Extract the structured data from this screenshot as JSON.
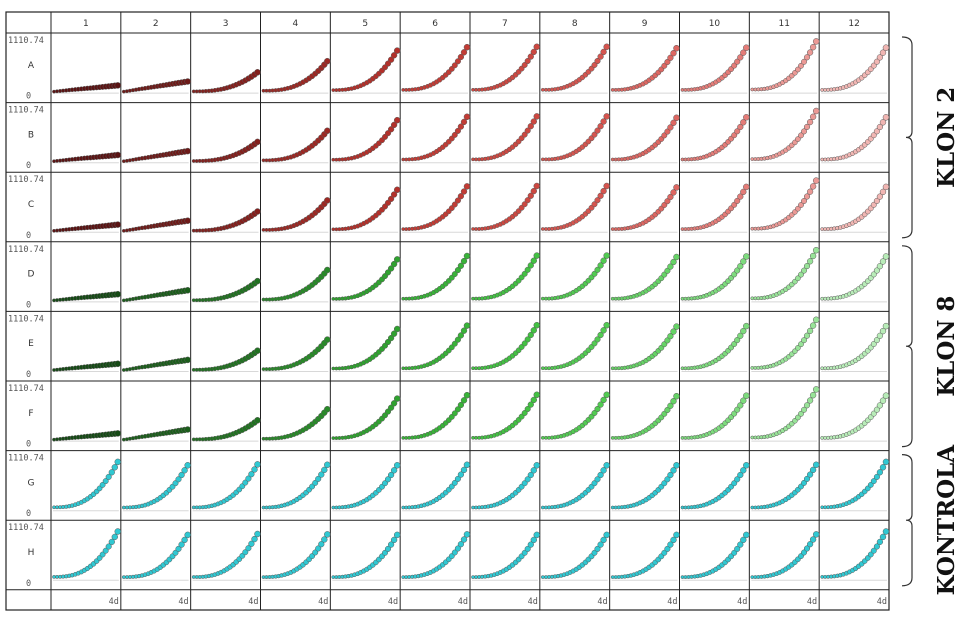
{
  "chart_data": {
    "type": "scatter",
    "title": "",
    "columns": [
      "1",
      "2",
      "3",
      "4",
      "5",
      "6",
      "7",
      "8",
      "9",
      "10",
      "11",
      "12"
    ],
    "rows": [
      "A",
      "B",
      "C",
      "D",
      "E",
      "F",
      "G",
      "H"
    ],
    "y_max_label": "1110.74",
    "y_min_label": "0",
    "ylim": [
      0,
      1110.74
    ],
    "x_end_label": "4d",
    "groups": [
      {
        "name": "KLON 2",
        "rows": [
          "A",
          "B",
          "C"
        ]
      },
      {
        "name": "KLON 8",
        "rows": [
          "D",
          "E",
          "F"
        ]
      },
      {
        "name": "KONTROLA",
        "rows": [
          "G",
          "H"
        ]
      }
    ],
    "row_series": {
      "A": {
        "row_growth": 1.0,
        "series": [
          {
            "name": "1",
            "end": 150
          },
          {
            "name": "2",
            "end": 230
          },
          {
            "name": "3",
            "end": 420
          },
          {
            "name": "4",
            "end": 650
          },
          {
            "name": "5",
            "end": 870
          },
          {
            "name": "6",
            "end": 940
          },
          {
            "name": "7",
            "end": 950
          },
          {
            "name": "8",
            "end": 950
          },
          {
            "name": "9",
            "end": 920
          },
          {
            "name": "10",
            "end": 930
          },
          {
            "name": "11",
            "end": 1060
          },
          {
            "name": "12",
            "end": 930
          }
        ]
      },
      "B": {
        "row_growth": 1.0,
        "series": [
          {
            "name": "1",
            "end": 150
          },
          {
            "name": "2",
            "end": 230
          },
          {
            "name": "3",
            "end": 420
          },
          {
            "name": "4",
            "end": 650
          },
          {
            "name": "5",
            "end": 870
          },
          {
            "name": "6",
            "end": 940
          },
          {
            "name": "7",
            "end": 950
          },
          {
            "name": "8",
            "end": 950
          },
          {
            "name": "9",
            "end": 920
          },
          {
            "name": "10",
            "end": 930
          },
          {
            "name": "11",
            "end": 1060
          },
          {
            "name": "12",
            "end": 930
          }
        ]
      },
      "C": {
        "row_growth": 1.0,
        "series": [
          {
            "name": "1",
            "end": 150
          },
          {
            "name": "2",
            "end": 230
          },
          {
            "name": "3",
            "end": 420
          },
          {
            "name": "4",
            "end": 650
          },
          {
            "name": "5",
            "end": 870
          },
          {
            "name": "6",
            "end": 940
          },
          {
            "name": "7",
            "end": 950
          },
          {
            "name": "8",
            "end": 950
          },
          {
            "name": "9",
            "end": 920
          },
          {
            "name": "10",
            "end": 930
          },
          {
            "name": "11",
            "end": 1060
          },
          {
            "name": "12",
            "end": 930
          }
        ]
      },
      "D": {
        "row_growth": 1.0,
        "series": [
          {
            "name": "1",
            "end": 150
          },
          {
            "name": "2",
            "end": 230
          },
          {
            "name": "3",
            "end": 420
          },
          {
            "name": "4",
            "end": 650
          },
          {
            "name": "5",
            "end": 870
          },
          {
            "name": "6",
            "end": 940
          },
          {
            "name": "7",
            "end": 950
          },
          {
            "name": "8",
            "end": 950
          },
          {
            "name": "9",
            "end": 920
          },
          {
            "name": "10",
            "end": 930
          },
          {
            "name": "11",
            "end": 1060
          },
          {
            "name": "12",
            "end": 930
          }
        ]
      },
      "E": {
        "row_growth": 1.0,
        "series": [
          {
            "name": "1",
            "end": 150
          },
          {
            "name": "2",
            "end": 230
          },
          {
            "name": "3",
            "end": 420
          },
          {
            "name": "4",
            "end": 650
          },
          {
            "name": "5",
            "end": 870
          },
          {
            "name": "6",
            "end": 940
          },
          {
            "name": "7",
            "end": 950
          },
          {
            "name": "8",
            "end": 950
          },
          {
            "name": "9",
            "end": 920
          },
          {
            "name": "10",
            "end": 930
          },
          {
            "name": "11",
            "end": 1060
          },
          {
            "name": "12",
            "end": 930
          }
        ]
      },
      "F": {
        "row_growth": 1.0,
        "series": [
          {
            "name": "1",
            "end": 150
          },
          {
            "name": "2",
            "end": 230
          },
          {
            "name": "3",
            "end": 420
          },
          {
            "name": "4",
            "end": 650
          },
          {
            "name": "5",
            "end": 870
          },
          {
            "name": "6",
            "end": 940
          },
          {
            "name": "7",
            "end": 950
          },
          {
            "name": "8",
            "end": 950
          },
          {
            "name": "9",
            "end": 920
          },
          {
            "name": "10",
            "end": 930
          },
          {
            "name": "11",
            "end": 1060
          },
          {
            "name": "12",
            "end": 930
          }
        ]
      },
      "G": {
        "row_growth": 1.0,
        "series": [
          {
            "name": "1",
            "end": 1000
          },
          {
            "name": "2",
            "end": 930
          },
          {
            "name": "3",
            "end": 950
          },
          {
            "name": "4",
            "end": 940
          },
          {
            "name": "5",
            "end": 930
          },
          {
            "name": "6",
            "end": 940
          },
          {
            "name": "7",
            "end": 930
          },
          {
            "name": "8",
            "end": 930
          },
          {
            "name": "9",
            "end": 930
          },
          {
            "name": "10",
            "end": 930
          },
          {
            "name": "11",
            "end": 940
          },
          {
            "name": "12",
            "end": 1000
          }
        ]
      },
      "H": {
        "row_growth": 1.0,
        "series": [
          {
            "name": "1",
            "end": 1000
          },
          {
            "name": "2",
            "end": 930
          },
          {
            "name": "3",
            "end": 950
          },
          {
            "name": "4",
            "end": 940
          },
          {
            "name": "5",
            "end": 930
          },
          {
            "name": "6",
            "end": 940
          },
          {
            "name": "7",
            "end": 930
          },
          {
            "name": "8",
            "end": 930
          },
          {
            "name": "9",
            "end": 930
          },
          {
            "name": "10",
            "end": 930
          },
          {
            "name": "11",
            "end": 940
          },
          {
            "name": "12",
            "end": 1000
          }
        ]
      }
    },
    "group_colors": {
      "KLON 2": [
        "#5a1313",
        "#6e1a18",
        "#84201d",
        "#9c2823",
        "#b3302a",
        "#c23c35",
        "#cc4841",
        "#d5554f",
        "#dd6762",
        "#e47c78",
        "#eb9995",
        "#f1b6b3"
      ],
      "KLON 8": [
        "#154a15",
        "#1b5e1b",
        "#217221",
        "#288a28",
        "#2fa22f",
        "#38b338",
        "#43c143",
        "#52cb52",
        "#66d366",
        "#7ddb7d",
        "#98e398",
        "#b8ecb8"
      ],
      "KONTROLA": [
        "#30c8d2"
      ]
    },
    "grid": false
  }
}
